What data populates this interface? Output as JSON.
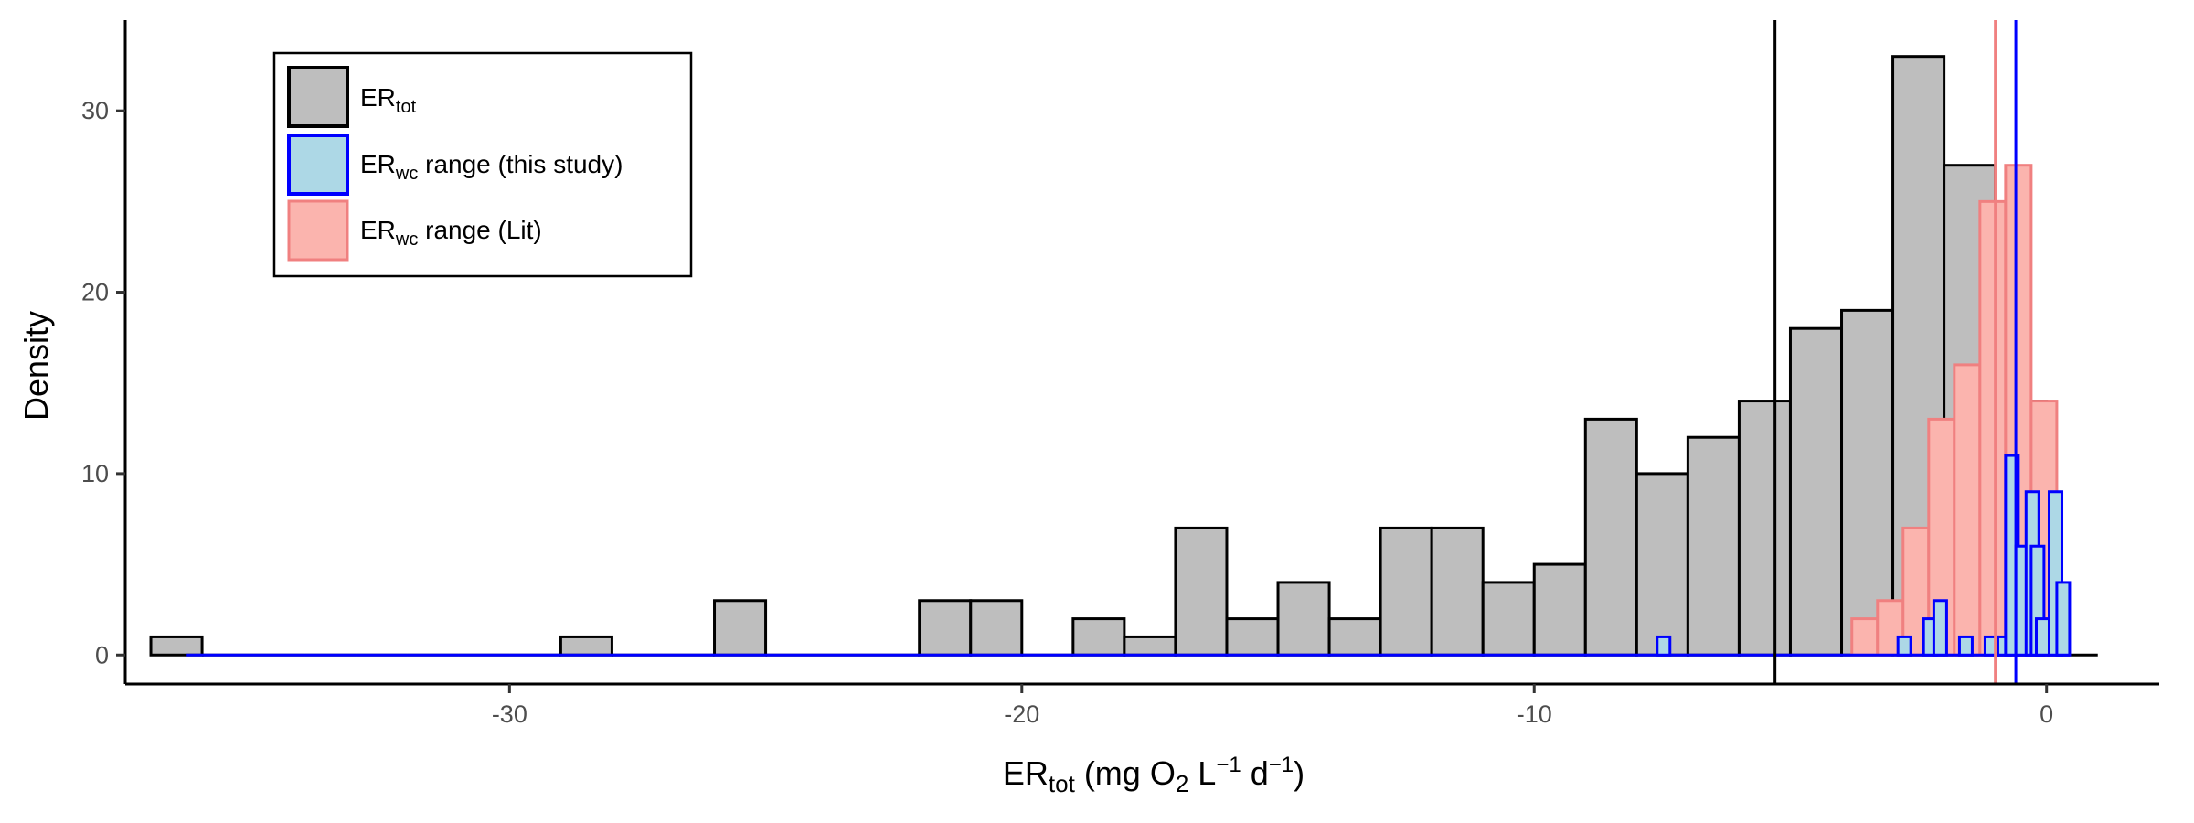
{
  "chart_data": {
    "type": "histogram",
    "xlim": [
      -37.5,
      2.2
    ],
    "ylim": [
      -1.6,
      35
    ],
    "x_ticks": [
      -30,
      -20,
      -10,
      0
    ],
    "x_tick_labels": [
      "-30",
      "-20",
      "-10",
      "0"
    ],
    "y_ticks": [
      0,
      10,
      20,
      30
    ],
    "y_tick_labels": [
      "0",
      "10",
      "20",
      "30"
    ],
    "xlabel": {
      "base": "ER",
      "sub": "tot",
      "rest": " (mg O",
      "sub2": "2",
      "rest2": " L",
      "sup": "−1",
      "rest3": " d",
      "sup2": "−1",
      "end": ")"
    },
    "ylabel": "Density",
    "grid": false,
    "legend_position": "top-left",
    "series": [
      {
        "key": "ER_tot",
        "legend": {
          "base": "ER",
          "sub": "tot",
          "rest": ""
        },
        "fill": "#bebebe",
        "stroke": "#000000",
        "bin_width": 1,
        "bins": [
          [
            -37,
            1
          ],
          [
            -36,
            0
          ],
          [
            -35,
            0
          ],
          [
            -34,
            0
          ],
          [
            -33,
            0
          ],
          [
            -32,
            0
          ],
          [
            -31,
            0
          ],
          [
            -30,
            0
          ],
          [
            -29,
            1
          ],
          [
            -28,
            0
          ],
          [
            -27,
            0
          ],
          [
            -26,
            3
          ],
          [
            -25,
            0
          ],
          [
            -24,
            0
          ],
          [
            -23,
            0
          ],
          [
            -22,
            3
          ],
          [
            -21,
            3
          ],
          [
            -20,
            0
          ],
          [
            -19,
            2
          ],
          [
            -18,
            1
          ],
          [
            -17,
            7
          ],
          [
            -16,
            2
          ],
          [
            -15,
            4
          ],
          [
            -14,
            2
          ],
          [
            -13,
            7
          ],
          [
            -12,
            7
          ],
          [
            -11,
            4
          ],
          [
            -10,
            5
          ],
          [
            -9,
            13
          ],
          [
            -8,
            10
          ],
          [
            -7,
            12
          ],
          [
            -6,
            14
          ],
          [
            -5,
            18
          ],
          [
            -4,
            19
          ],
          [
            -3,
            33
          ],
          [
            -2,
            27
          ],
          [
            -1,
            14
          ],
          [
            0,
            0
          ]
        ],
        "vline": -5.3,
        "vline_color": "#000000"
      },
      {
        "key": "ER_wc_this_study",
        "legend": {
          "base": "ER",
          "sub": "wc",
          "rest": " range (this study)"
        },
        "fill": "#add8e6",
        "stroke": "#0000ff",
        "bin_width": 0.25,
        "start": -36.3,
        "bins": [
          [
            -7.6,
            1
          ],
          [
            -2.9,
            1
          ],
          [
            -2.4,
            2
          ],
          [
            -2.2,
            3
          ],
          [
            -1.7,
            1
          ],
          [
            -1.2,
            1
          ],
          [
            -0.95,
            1
          ],
          [
            -0.8,
            11
          ],
          [
            -0.6,
            6
          ],
          [
            -0.4,
            9
          ],
          [
            -0.3,
            6
          ],
          [
            -0.2,
            2
          ],
          [
            0.05,
            9
          ],
          [
            0.2,
            4
          ]
        ],
        "vline": -0.6,
        "vline_color": "#0000ff"
      },
      {
        "key": "ER_wc_lit",
        "legend": {
          "base": "ER",
          "sub": "wc",
          "rest": " range (Lit)"
        },
        "fill": "#fbb4ae",
        "stroke": "#f08080",
        "bin_width": 0.5,
        "bins": [
          [
            -3.8,
            2
          ],
          [
            -3.3,
            3
          ],
          [
            -2.8,
            7
          ],
          [
            -2.3,
            13
          ],
          [
            -1.8,
            16
          ],
          [
            -1.3,
            25
          ],
          [
            -0.8,
            27
          ],
          [
            -0.3,
            14
          ]
        ],
        "vline": -1.0,
        "vline_color": "#f08080"
      }
    ]
  }
}
